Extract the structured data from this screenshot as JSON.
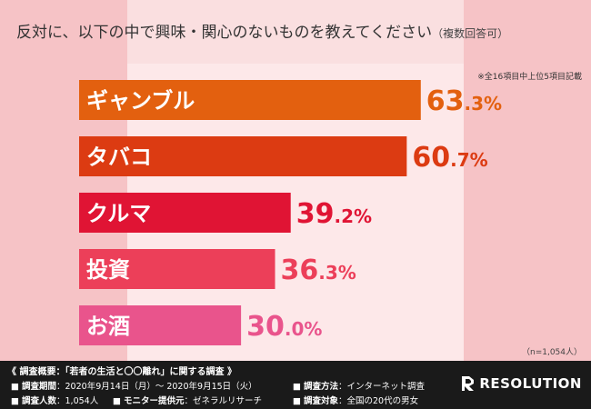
{
  "header": {
    "title": "反対に、以下の中で興味・関心のないものを教えてください",
    "title_note": "（複数回答可）"
  },
  "note": "※全16項目中上位5項目記載",
  "sample": "（n=1,054人）",
  "chart_data": {
    "type": "bar",
    "orientation": "horizontal",
    "unit": "%",
    "categories": [
      "ギャンブル",
      "タバコ",
      "クルマ",
      "投資",
      "お酒"
    ],
    "values": [
      63.3,
      60.7,
      39.2,
      36.3,
      30.0
    ],
    "value_labels": [
      {
        "int": "63",
        "dec": ".3%"
      },
      {
        "int": "60",
        "dec": ".7%"
      },
      {
        "int": "39",
        "dec": ".2%"
      },
      {
        "int": "36",
        "dec": ".3%"
      },
      {
        "int": "30",
        "dec": ".0%"
      }
    ],
    "colors": [
      "#e3600f",
      "#dc3b12",
      "#e01434",
      "#ec3f59",
      "#e9548c"
    ],
    "xlim": [
      0,
      100
    ],
    "grid": false,
    "legend": "none"
  },
  "footer": {
    "survey_title": "《 調査概要：「若者の生活と〇〇離れ」に関する調査 》",
    "period_label": "調査期間",
    "period_value": "：2020年9月14日（月）～ 2020年9月15日（火）",
    "method_label": "調査方法",
    "method_value": "：インターネット調査",
    "count_label": "調査人数",
    "count_value": "：1,054人",
    "provider_label": "モニター提供元",
    "provider_value": "：ゼネラルリサーチ",
    "target_label": "調査対象",
    "target_value": "：全国の20代の男女",
    "logo_text": "RESOLUTION"
  }
}
